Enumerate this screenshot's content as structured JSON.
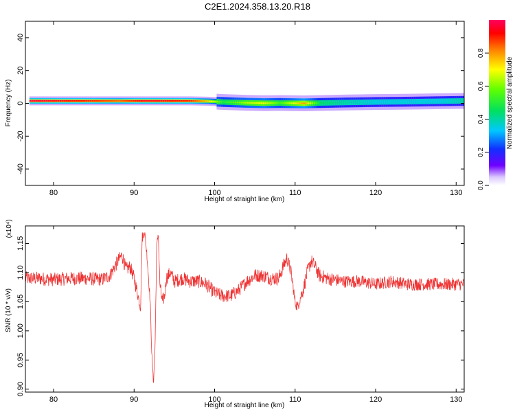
{
  "title": "C2E1.2024.358.13.20.R18",
  "chart_data": [
    {
      "type": "heatmap",
      "xlabel": "Height of straight line (km)",
      "ylabel": "Frequency (Hz)",
      "xlim": [
        76.5,
        131
      ],
      "ylim": [
        -50,
        50
      ],
      "xticks": [
        80,
        90,
        100,
        110,
        120,
        130
      ],
      "yticks": [
        40,
        20,
        0,
        -20,
        -40
      ],
      "colorbar": {
        "label": "Normalized spectral amplitude",
        "range": [
          0,
          1
        ],
        "ticks": [
          0.0,
          0.2,
          0.4,
          0.6,
          0.8
        ]
      },
      "ridge": [
        {
          "x": 77,
          "y": 1.5,
          "amp": 0.98
        },
        {
          "x": 85,
          "y": 1.5,
          "amp": 0.9
        },
        {
          "x": 88,
          "y": 1.5,
          "amp": 0.85
        },
        {
          "x": 91,
          "y": 1.5,
          "amp": 0.95
        },
        {
          "x": 93,
          "y": 1.5,
          "amp": 0.95
        },
        {
          "x": 97,
          "y": 1.5,
          "amp": 0.9
        },
        {
          "x": 99,
          "y": 1.3,
          "amp": 0.75
        },
        {
          "x": 101,
          "y": 0.8,
          "amp": 0.5
        },
        {
          "x": 104,
          "y": 0.3,
          "amp": 0.65
        },
        {
          "x": 106,
          "y": 0.1,
          "amp": 0.7
        },
        {
          "x": 108,
          "y": 0.2,
          "amp": 0.55
        },
        {
          "x": 111,
          "y": 0.0,
          "amp": 0.8
        },
        {
          "x": 113,
          "y": 0.2,
          "amp": 0.45
        },
        {
          "x": 116,
          "y": 0.5,
          "amp": 0.4
        },
        {
          "x": 120,
          "y": 0.8,
          "amp": 0.35
        },
        {
          "x": 124,
          "y": 1.0,
          "amp": 0.35
        },
        {
          "x": 128,
          "y": 1.3,
          "amp": 0.35
        },
        {
          "x": 131,
          "y": 1.5,
          "amp": 0.4
        }
      ]
    },
    {
      "type": "line",
      "xlabel": "Height of straight line (km)",
      "ylabel": "SNR (10 * v/v)",
      "yscale_label": "(x10⁴)",
      "xlim": [
        76.5,
        131
      ],
      "ylim": [
        0.895,
        1.18
      ],
      "xticks": [
        80,
        90,
        100,
        110,
        120,
        130
      ],
      "yticks": [
        0.9,
        0.95,
        1.0,
        1.05,
        1.1,
        1.15
      ],
      "color": "#ee3333",
      "series": [
        {
          "x": [
            76.5,
            78,
            80,
            82,
            84,
            86,
            87,
            88,
            88.5,
            89,
            89.5,
            90,
            90.5,
            90.8,
            91,
            91.3,
            91.6,
            92,
            92.2,
            92.4,
            92.6,
            92.8,
            93,
            93.2,
            93.5,
            93.8,
            94,
            94.5,
            95,
            96,
            97,
            98,
            99,
            100,
            101,
            102,
            103,
            104,
            105,
            106,
            107,
            108,
            108.5,
            109,
            109.5,
            110,
            110.3,
            110.6,
            111,
            111.5,
            112,
            112.5,
            113,
            114,
            116,
            118,
            120,
            122,
            124,
            126,
            128,
            130,
            131
          ],
          "values": [
            1.09,
            1.09,
            1.088,
            1.09,
            1.09,
            1.088,
            1.095,
            1.12,
            1.13,
            1.105,
            1.11,
            1.09,
            1.06,
            1.04,
            1.16,
            1.17,
            1.13,
            1.05,
            0.96,
            0.91,
            0.97,
            1.14,
            1.17,
            1.08,
            1.05,
            1.06,
            1.09,
            1.1,
            1.085,
            1.09,
            1.085,
            1.085,
            1.08,
            1.065,
            1.06,
            1.06,
            1.07,
            1.085,
            1.095,
            1.095,
            1.09,
            1.09,
            1.11,
            1.125,
            1.1,
            1.05,
            1.04,
            1.055,
            1.07,
            1.1,
            1.12,
            1.11,
            1.095,
            1.09,
            1.085,
            1.085,
            1.08,
            1.085,
            1.08,
            1.08,
            1.08,
            1.08,
            1.08
          ],
          "noise": [
            0.012,
            0.012,
            0.012,
            0.012,
            0.012,
            0.012,
            0.012,
            0.012,
            0.012,
            0.012,
            0.012,
            0.012,
            0.01,
            0.01,
            0.01,
            0.008,
            0.008,
            0.008,
            0.006,
            0.006,
            0.008,
            0.008,
            0.008,
            0.01,
            0.012,
            0.012,
            0.012,
            0.012,
            0.012,
            0.012,
            0.012,
            0.012,
            0.012,
            0.012,
            0.012,
            0.012,
            0.012,
            0.012,
            0.012,
            0.012,
            0.012,
            0.012,
            0.012,
            0.012,
            0.012,
            0.01,
            0.01,
            0.01,
            0.012,
            0.012,
            0.012,
            0.012,
            0.012,
            0.012,
            0.011,
            0.011,
            0.011,
            0.011,
            0.011,
            0.011,
            0.011,
            0.011,
            0.011
          ]
        }
      ]
    }
  ]
}
